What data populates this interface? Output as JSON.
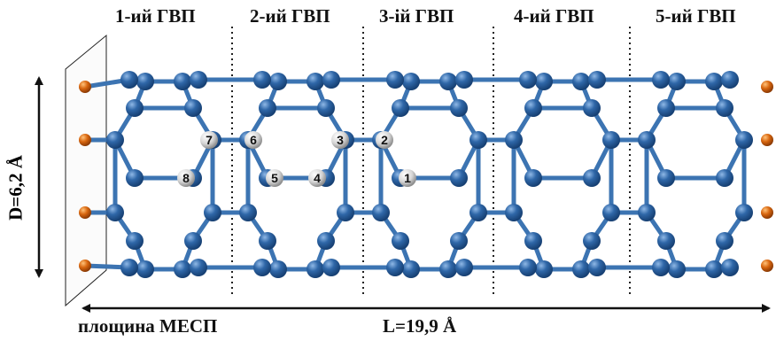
{
  "segments": [
    {
      "label": "1-ий ГВП"
    },
    {
      "label": "2-ий ГВП"
    },
    {
      "label": "3-ій ГВП"
    },
    {
      "label": "4-ий ГВП"
    },
    {
      "label": "5-ий ГВП"
    }
  ],
  "diameter_label": "D=6,2 Å",
  "length_label": "L=19,9 Å",
  "plane_label": "площина МЕСП",
  "atom_numbers": [
    "1",
    "2",
    "3",
    "4",
    "5",
    "6",
    "7",
    "8"
  ],
  "colors": {
    "carbon": "#2f67a8",
    "bond": "#3c74b2",
    "hydrogen": "#d8660f",
    "numbered": "#d6d6d6",
    "text": "#111111"
  }
}
